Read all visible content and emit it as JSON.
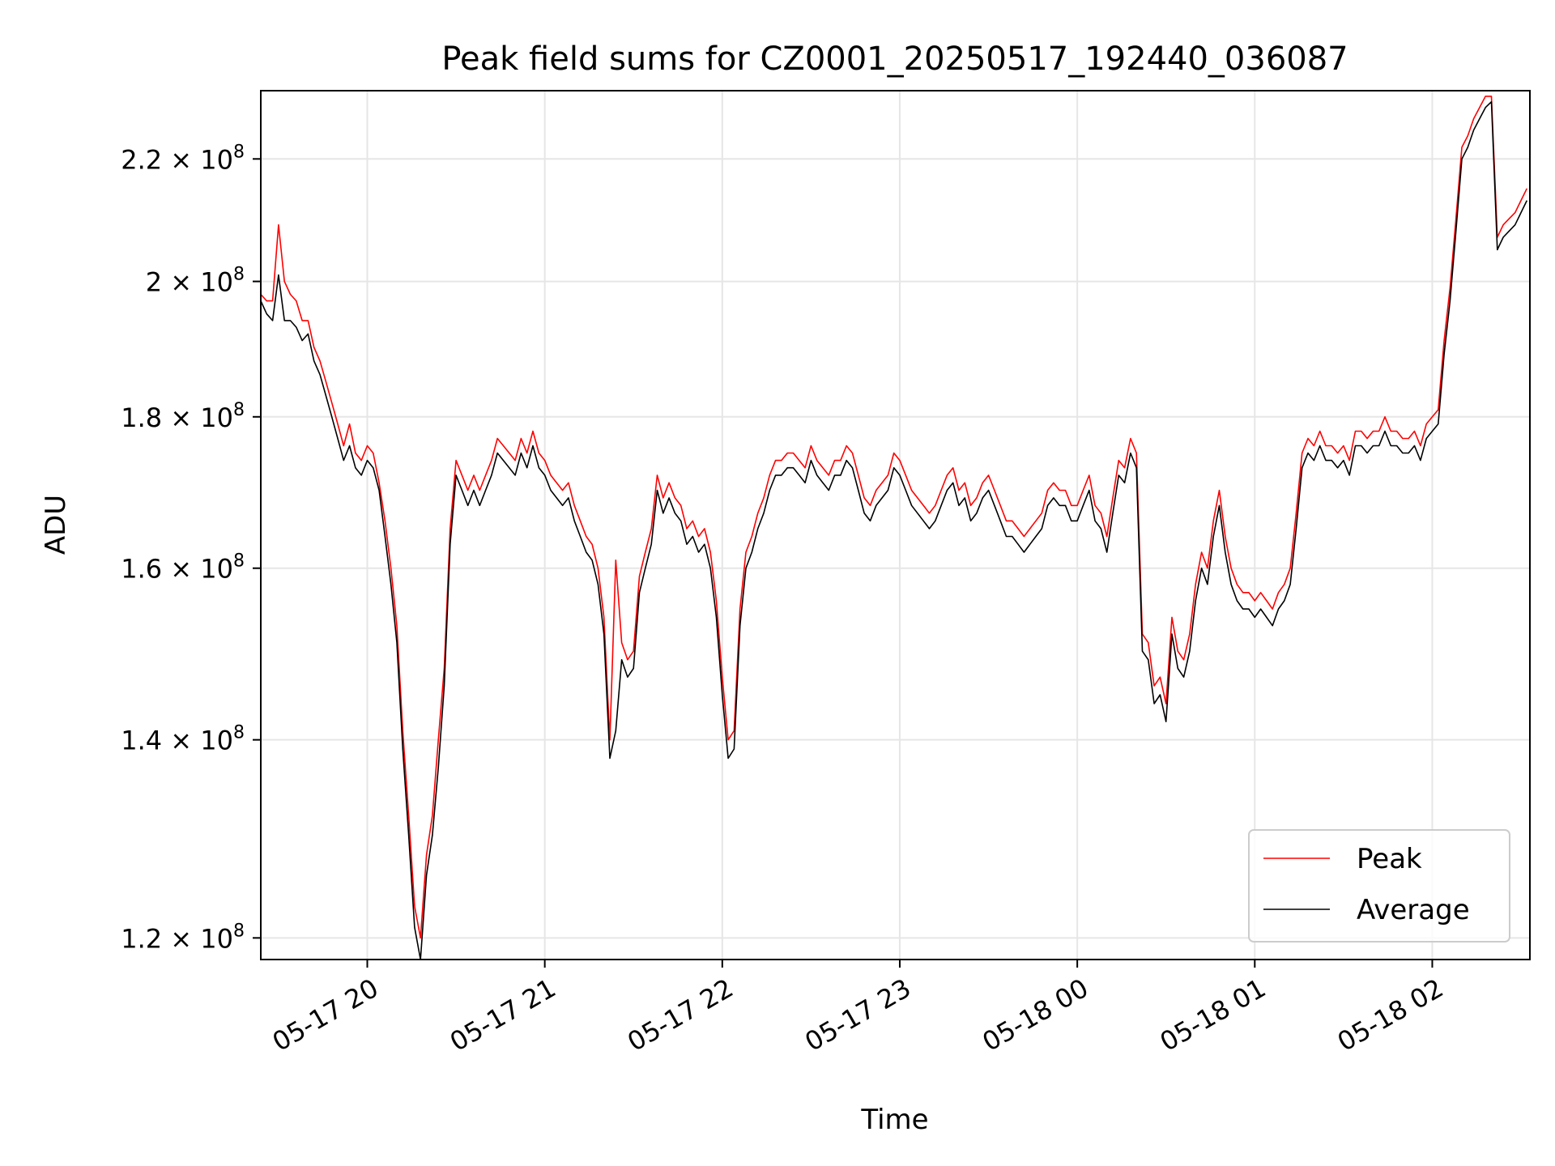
{
  "chart_data": {
    "type": "line",
    "title": "Peak field sums for CZ0001_20250517_192440_036087",
    "xlabel": "Time",
    "ylabel": "ADU",
    "y_scale": "log",
    "grid": true,
    "legend_position": "lower-right",
    "xlim": [
      "2025-05-17 19:24",
      "2025-05-18 02:33"
    ],
    "ylim": [
      118000000,
      232000000
    ],
    "x_ticks": [
      {
        "value": "2025-05-17 20:00",
        "label": "05-17 20"
      },
      {
        "value": "2025-05-17 21:00",
        "label": "05-17 21"
      },
      {
        "value": "2025-05-17 22:00",
        "label": "05-17 22"
      },
      {
        "value": "2025-05-17 23:00",
        "label": "05-17 23"
      },
      {
        "value": "2025-05-18 00:00",
        "label": "05-18 00"
      },
      {
        "value": "2025-05-18 01:00",
        "label": "05-18 01"
      },
      {
        "value": "2025-05-18 02:00",
        "label": "05-18 02"
      }
    ],
    "y_ticks": [
      {
        "value": 120000000,
        "label": "1.2 × 10",
        "exp": "8"
      },
      {
        "value": 140000000,
        "label": "1.4 × 10",
        "exp": "8"
      },
      {
        "value": 160000000,
        "label": "1.6 × 10",
        "exp": "8"
      },
      {
        "value": 180000000,
        "label": "1.8 × 10",
        "exp": "8"
      },
      {
        "value": 200000000,
        "label": "2 × 10",
        "exp": "8"
      },
      {
        "value": 220000000,
        "label": "2.2 × 10",
        "exp": "8"
      }
    ],
    "series": [
      {
        "name": "Peak",
        "color": "#ff0000"
      },
      {
        "name": "Average",
        "color": "#000000"
      }
    ],
    "x": [
      "2025-05-17 19:24",
      "2025-05-17 19:26",
      "2025-05-17 19:28",
      "2025-05-17 19:30",
      "2025-05-17 19:32",
      "2025-05-17 19:34",
      "2025-05-17 19:36",
      "2025-05-17 19:38",
      "2025-05-17 19:40",
      "2025-05-17 19:42",
      "2025-05-17 19:44",
      "2025-05-17 19:46",
      "2025-05-17 19:48",
      "2025-05-17 19:50",
      "2025-05-17 19:52",
      "2025-05-17 19:54",
      "2025-05-17 19:56",
      "2025-05-17 19:58",
      "2025-05-17 20:00",
      "2025-05-17 20:02",
      "2025-05-17 20:04",
      "2025-05-17 20:06",
      "2025-05-17 20:08",
      "2025-05-17 20:10",
      "2025-05-17 20:12",
      "2025-05-17 20:14",
      "2025-05-17 20:16",
      "2025-05-17 20:18",
      "2025-05-17 20:20",
      "2025-05-17 20:22",
      "2025-05-17 20:24",
      "2025-05-17 20:26",
      "2025-05-17 20:28",
      "2025-05-17 20:30",
      "2025-05-17 20:32",
      "2025-05-17 20:34",
      "2025-05-17 20:36",
      "2025-05-17 20:38",
      "2025-05-17 20:40",
      "2025-05-17 20:42",
      "2025-05-17 20:44",
      "2025-05-17 20:46",
      "2025-05-17 20:48",
      "2025-05-17 20:50",
      "2025-05-17 20:52",
      "2025-05-17 20:54",
      "2025-05-17 20:56",
      "2025-05-17 20:58",
      "2025-05-17 21:00",
      "2025-05-17 21:02",
      "2025-05-17 21:04",
      "2025-05-17 21:06",
      "2025-05-17 21:08",
      "2025-05-17 21:10",
      "2025-05-17 21:12",
      "2025-05-17 21:14",
      "2025-05-17 21:16",
      "2025-05-17 21:18",
      "2025-05-17 21:20",
      "2025-05-17 21:22",
      "2025-05-17 21:24",
      "2025-05-17 21:26",
      "2025-05-17 21:28",
      "2025-05-17 21:30",
      "2025-05-17 21:32",
      "2025-05-17 21:34",
      "2025-05-17 21:36",
      "2025-05-17 21:38",
      "2025-05-17 21:40",
      "2025-05-17 21:42",
      "2025-05-17 21:44",
      "2025-05-17 21:46",
      "2025-05-17 21:48",
      "2025-05-17 21:50",
      "2025-05-17 21:52",
      "2025-05-17 21:54",
      "2025-05-17 21:56",
      "2025-05-17 21:58",
      "2025-05-17 22:00",
      "2025-05-17 22:02",
      "2025-05-17 22:04",
      "2025-05-17 22:06",
      "2025-05-17 22:08",
      "2025-05-17 22:10",
      "2025-05-17 22:12",
      "2025-05-17 22:14",
      "2025-05-17 22:16",
      "2025-05-17 22:18",
      "2025-05-17 22:20",
      "2025-05-17 22:22",
      "2025-05-17 22:24",
      "2025-05-17 22:26",
      "2025-05-17 22:28",
      "2025-05-17 22:30",
      "2025-05-17 22:32",
      "2025-05-17 22:34",
      "2025-05-17 22:36",
      "2025-05-17 22:38",
      "2025-05-17 22:40",
      "2025-05-17 22:42",
      "2025-05-17 22:44",
      "2025-05-17 22:46",
      "2025-05-17 22:48",
      "2025-05-17 22:50",
      "2025-05-17 22:52",
      "2025-05-17 22:54",
      "2025-05-17 22:56",
      "2025-05-17 22:58",
      "2025-05-17 23:00",
      "2025-05-17 23:02",
      "2025-05-17 23:04",
      "2025-05-17 23:06",
      "2025-05-17 23:08",
      "2025-05-17 23:10",
      "2025-05-17 23:12",
      "2025-05-17 23:14",
      "2025-05-17 23:16",
      "2025-05-17 23:18",
      "2025-05-17 23:20",
      "2025-05-17 23:22",
      "2025-05-17 23:24",
      "2025-05-17 23:26",
      "2025-05-17 23:28",
      "2025-05-17 23:30",
      "2025-05-17 23:32",
      "2025-05-17 23:34",
      "2025-05-17 23:36",
      "2025-05-17 23:38",
      "2025-05-17 23:40",
      "2025-05-17 23:42",
      "2025-05-17 23:44",
      "2025-05-17 23:46",
      "2025-05-17 23:48",
      "2025-05-17 23:50",
      "2025-05-17 23:52",
      "2025-05-17 23:54",
      "2025-05-17 23:56",
      "2025-05-17 23:58",
      "2025-05-18 00:00",
      "2025-05-18 00:02",
      "2025-05-18 00:04",
      "2025-05-18 00:06",
      "2025-05-18 00:08",
      "2025-05-18 00:10",
      "2025-05-18 00:12",
      "2025-05-18 00:14",
      "2025-05-18 00:16",
      "2025-05-18 00:18",
      "2025-05-18 00:20",
      "2025-05-18 00:22",
      "2025-05-18 00:24",
      "2025-05-18 00:26",
      "2025-05-18 00:28",
      "2025-05-18 00:30",
      "2025-05-18 00:32",
      "2025-05-18 00:34",
      "2025-05-18 00:36",
      "2025-05-18 00:38",
      "2025-05-18 00:40",
      "2025-05-18 00:42",
      "2025-05-18 00:44",
      "2025-05-18 00:46",
      "2025-05-18 00:48",
      "2025-05-18 00:50",
      "2025-05-18 00:52",
      "2025-05-18 00:54",
      "2025-05-18 00:56",
      "2025-05-18 00:58",
      "2025-05-18 01:00",
      "2025-05-18 01:02",
      "2025-05-18 01:04",
      "2025-05-18 01:06",
      "2025-05-18 01:08",
      "2025-05-18 01:10",
      "2025-05-18 01:12",
      "2025-05-18 01:14",
      "2025-05-18 01:16",
      "2025-05-18 01:18",
      "2025-05-18 01:20",
      "2025-05-18 01:22",
      "2025-05-18 01:24",
      "2025-05-18 01:26",
      "2025-05-18 01:28",
      "2025-05-18 01:30",
      "2025-05-18 01:32",
      "2025-05-18 01:34",
      "2025-05-18 01:36",
      "2025-05-18 01:38",
      "2025-05-18 01:40",
      "2025-05-18 01:42",
      "2025-05-18 01:44",
      "2025-05-18 01:46",
      "2025-05-18 01:48",
      "2025-05-18 01:50",
      "2025-05-18 01:52",
      "2025-05-18 01:54",
      "2025-05-18 01:56",
      "2025-05-18 01:58",
      "2025-05-18 02:00",
      "2025-05-18 02:02",
      "2025-05-18 02:04",
      "2025-05-18 02:06",
      "2025-05-18 02:08",
      "2025-05-18 02:10",
      "2025-05-18 02:12",
      "2025-05-18 02:14",
      "2025-05-18 02:16",
      "2025-05-18 02:18",
      "2025-05-18 02:20",
      "2025-05-18 02:22",
      "2025-05-18 02:24",
      "2025-05-18 02:26",
      "2025-05-18 02:28",
      "2025-05-18 02:30",
      "2025-05-18 02:32"
    ],
    "average": [
      197,
      195,
      194,
      201,
      194,
      194,
      193,
      191,
      192,
      188,
      186,
      183,
      180,
      177,
      174,
      176,
      173,
      172,
      174,
      173,
      170,
      164,
      158,
      151,
      139,
      130,
      121,
      118,
      126,
      130,
      137,
      146,
      163,
      172,
      170,
      168,
      170,
      168,
      170,
      172,
      175,
      174,
      173,
      172,
      175,
      173,
      176,
      173,
      172,
      170,
      169,
      168,
      169,
      166,
      164,
      162,
      161,
      158,
      152,
      138,
      141,
      149,
      147,
      148,
      157,
      160,
      163,
      170,
      167,
      169,
      167,
      166,
      163,
      164,
      162,
      163,
      160,
      154,
      145,
      138,
      139,
      153,
      160,
      162,
      165,
      167,
      170,
      172,
      172,
      173,
      173,
      172,
      171,
      174,
      172,
      171,
      170,
      172,
      172,
      174,
      173,
      170,
      167,
      166,
      168,
      169,
      170,
      173,
      172,
      170,
      168,
      167,
      166,
      165,
      166,
      168,
      170,
      171,
      168,
      169,
      166,
      167,
      169,
      170,
      168,
      166,
      164,
      164,
      163,
      162,
      163,
      164,
      165,
      168,
      169,
      168,
      168,
      166,
      166,
      168,
      170,
      166,
      165,
      162,
      167,
      172,
      171,
      175,
      173,
      150,
      149,
      144,
      145,
      142,
      152,
      148,
      147,
      150,
      156,
      160,
      158,
      164,
      168,
      162,
      158,
      156,
      155,
      155,
      154,
      155,
      154,
      153,
      155,
      156,
      158,
      165,
      173,
      175,
      174,
      176,
      174,
      174,
      173,
      174,
      172,
      176,
      176,
      175,
      176,
      176,
      178,
      176,
      176,
      175,
      175,
      176,
      174,
      177,
      178,
      179,
      189,
      197,
      208,
      220,
      222,
      225,
      227,
      229,
      230,
      205,
      207,
      208,
      209,
      211,
      213
    ],
    "peak": [
      198,
      197,
      197,
      209,
      200,
      198,
      197,
      194,
      194,
      190,
      188,
      185,
      182,
      179,
      176,
      179,
      175,
      174,
      176,
      175,
      171,
      166,
      160,
      153,
      141,
      132,
      123,
      120,
      128,
      132,
      140,
      148,
      165,
      174,
      172,
      170,
      172,
      170,
      172,
      174,
      177,
      176,
      175,
      174,
      177,
      175,
      178,
      175,
      174,
      172,
      171,
      170,
      171,
      168,
      166,
      164,
      163,
      160,
      154,
      140,
      161,
      151,
      149,
      150,
      159,
      162,
      165,
      172,
      169,
      171,
      169,
      168,
      165,
      166,
      164,
      165,
      162,
      156,
      147,
      140,
      141,
      155,
      162,
      164,
      167,
      169,
      172,
      174,
      174,
      175,
      175,
      174,
      173,
      176,
      174,
      173,
      172,
      174,
      174,
      176,
      175,
      172,
      169,
      168,
      170,
      171,
      172,
      175,
      174,
      172,
      170,
      169,
      168,
      167,
      168,
      170,
      172,
      173,
      170,
      171,
      168,
      169,
      171,
      172,
      170,
      168,
      166,
      166,
      165,
      164,
      165,
      166,
      167,
      170,
      171,
      170,
      170,
      168,
      168,
      170,
      172,
      168,
      167,
      164,
      169,
      174,
      173,
      177,
      175,
      152,
      151,
      146,
      147,
      144,
      154,
      150,
      149,
      152,
      158,
      162,
      160,
      166,
      170,
      164,
      160,
      158,
      157,
      157,
      156,
      157,
      156,
      155,
      157,
      158,
      160,
      167,
      175,
      177,
      176,
      178,
      176,
      176,
      175,
      176,
      174,
      178,
      178,
      177,
      178,
      178,
      180,
      178,
      178,
      177,
      177,
      178,
      176,
      179,
      180,
      181,
      191,
      199,
      210,
      222,
      224,
      227,
      229,
      231,
      231,
      207,
      209,
      210,
      211,
      213,
      215
    ]
  }
}
